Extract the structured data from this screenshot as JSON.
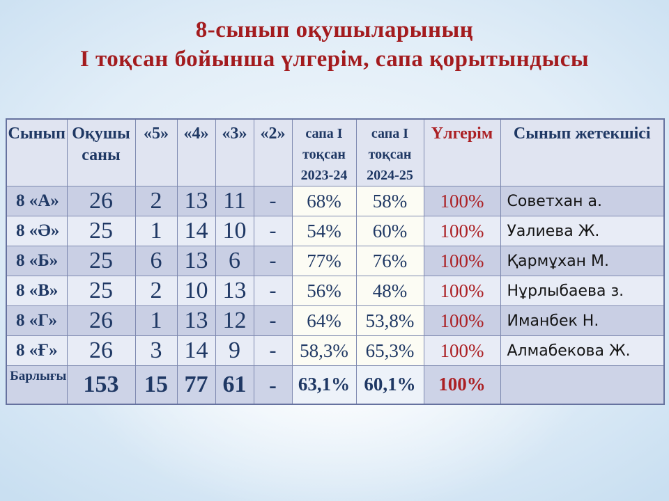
{
  "title": {
    "line1": "8-сынып оқушыларының",
    "line2": "І тоқсан бойынша үлгерім, сапа қорытындысы"
  },
  "colors": {
    "title_red": "#a31b1e",
    "accent_red": "#ab1f23",
    "navy": "#1f3864",
    "border": "#7e89b0",
    "header_bg": "#e0e4f1",
    "stripe_dark": "#c9cfe4",
    "stripe_light": "#e8ecf6",
    "total_bg": "#cdd3e7",
    "quality_cell_bg": "#fcfcf4"
  },
  "table": {
    "headers": {
      "class": "Сынып",
      "count": "Оқушы\nсаны",
      "m5": "«5»",
      "m4": "«4»",
      "m3": "«3»",
      "m2": "«2»",
      "q2324": "сапа І\nтоқсан\n2023-24",
      "q2425": "сапа І\nтоқсан\n2024-25",
      "ulgerim": "Үлгерім",
      "teacher": "Сынып жетекшісі"
    },
    "rows": [
      {
        "cls": "8 «А»",
        "count": "26",
        "m5": "2",
        "m4": "13",
        "m3": "11",
        "m2": "-",
        "q2324": "68%",
        "q2425": "58%",
        "ulgerim": "100%",
        "teacher": "Советхан а."
      },
      {
        "cls": "8 «Ә»",
        "count": "25",
        "m5": "1",
        "m4": "14",
        "m3": "10",
        "m2": "-",
        "q2324": "54%",
        "q2425": "60%",
        "ulgerim": "100%",
        "teacher": "Уалиева Ж."
      },
      {
        "cls": "8 «Б»",
        "count": "25",
        "m5": "6",
        "m4": "13",
        "m3": "6",
        "m2": "-",
        "q2324": "77%",
        "q2425": "76%",
        "ulgerim": "100%",
        "teacher": "Қармұхан М."
      },
      {
        "cls": "8 «В»",
        "count": "25",
        "m5": "2",
        "m4": "10",
        "m3": "13",
        "m2": "-",
        "q2324": "56%",
        "q2425": "48%",
        "ulgerim": "100%",
        "teacher": "Нұрлыбаева з."
      },
      {
        "cls": "8 «Г»",
        "count": "26",
        "m5": "1",
        "m4": "13",
        "m3": "12",
        "m2": "-",
        "q2324": "64%",
        "q2425": "53,8%",
        "ulgerim": "100%",
        "teacher": "Иманбек Н."
      },
      {
        "cls": "8 «Ғ»",
        "count": "26",
        "m5": "3",
        "m4": "14",
        "m3": "9",
        "m2": "-",
        "q2324": "58,3%",
        "q2425": "65,3%",
        "ulgerim": "100%",
        "teacher": "Алмабекова Ж."
      }
    ],
    "total": {
      "label": "Барлығы",
      "count": "153",
      "m5": "15",
      "m4": "77",
      "m3": "61",
      "m2": "-",
      "q2324": "63,1%",
      "q2425": "60,1%",
      "ulgerim": "100%",
      "teacher": ""
    }
  }
}
